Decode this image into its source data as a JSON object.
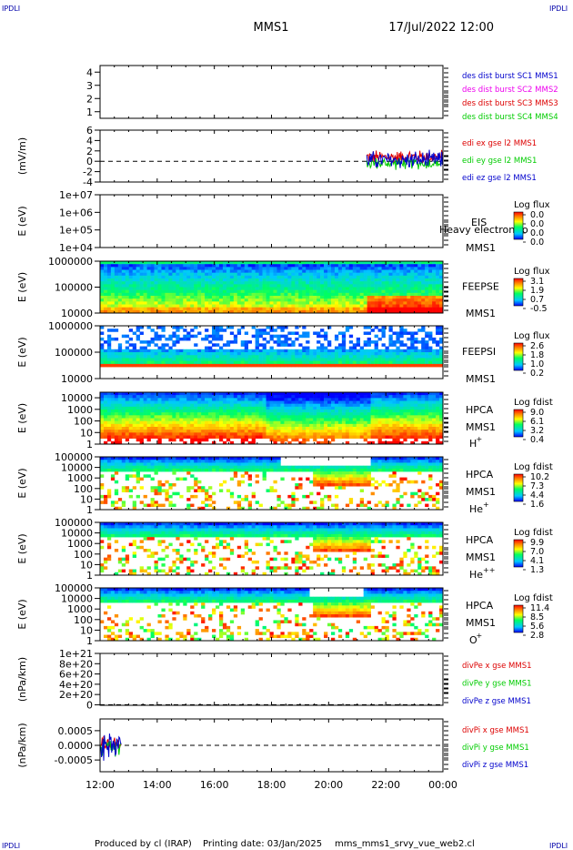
{
  "header": {
    "corner_tl": "IPDLI",
    "corner_tr": "IPDLI",
    "corner_bl": "IPDLI",
    "corner_br": "IPDLI",
    "mission": "MMS1",
    "datetime": "17/Jul/2022 12:00"
  },
  "footer": {
    "producer": "Produced by cl (IRAP)",
    "printing": "Printing date: 03/Jan/2025",
    "script": "mms_mms1_srvy_vue_web2.cl"
  },
  "colors": {
    "series_red": "#dd0000",
    "series_green": "#00cc00",
    "series_blue": "#0000cc",
    "series_magenta": "#ee00ee",
    "frame": "#000000"
  },
  "chart_data": [
    {
      "id": "des",
      "type": "line",
      "ylabel": "",
      "ylim": [
        0.5,
        4.5
      ],
      "y_ticks": [
        "4",
        "3",
        "2",
        "1"
      ],
      "y_tick_values": [
        4,
        3,
        2,
        1
      ],
      "x_ticks": [
        "12:00",
        "14:00",
        "16:00",
        "18:00",
        "20:00",
        "22:00",
        "00:00"
      ],
      "legend": [
        {
          "text": "des dist burst SC1 MMS1",
          "color": "#0000cc"
        },
        {
          "text": "des dist burst SC2 MMS2",
          "color": "#ee00ee"
        },
        {
          "text": "des dist burst SC3 MMS3",
          "color": "#dd0000"
        },
        {
          "text": "des dist burst SC4 MMS4",
          "color": "#00cc00"
        }
      ]
    },
    {
      "id": "edi",
      "type": "line",
      "ylabel": "(mV/m)",
      "ylim": [
        -4,
        6
      ],
      "y_ticks": [
        "6",
        "4",
        "2",
        "0",
        "-2",
        "-4"
      ],
      "y_tick_values": [
        6,
        4,
        2,
        0,
        -2,
        -4
      ],
      "zero_line": true,
      "data_x_range": [
        "21:20",
        "00:00"
      ],
      "series": [
        {
          "name": "edi ex gse l2 MMS1",
          "color": "#dd0000",
          "mean": 0.8,
          "spread": 1.2
        },
        {
          "name": "edi ey gse l2 MMS1",
          "color": "#00cc00",
          "mean": -0.4,
          "spread": 1.0
        },
        {
          "name": "edi ez gse l2 MMS1",
          "color": "#0000cc",
          "mean": 0.2,
          "spread": 1.5
        }
      ]
    },
    {
      "id": "eis",
      "type": "heatmap",
      "ylabel": "E (eV)",
      "y_ticks": [
        "1e+07",
        "1e+06",
        "1e+05",
        "1e+04"
      ],
      "y_tick_values": [
        10000000,
        1000000,
        100000,
        10000
      ],
      "ylim": [
        10000,
        10000000
      ],
      "instrument": [
        "EIS"
      ],
      "spacecraft": "MMS1",
      "overflow_text": "Heavy electron to",
      "colorbar": {
        "title": "Log flux",
        "labels": [
          "0.0",
          "0.0",
          "0.0",
          "0.0"
        ]
      },
      "empty": true
    },
    {
      "id": "feeps_e",
      "type": "heatmap",
      "ylabel": "E (eV)",
      "y_ticks": [
        "1000000",
        "100000",
        "10000"
      ],
      "y_tick_values": [
        1000000,
        100000,
        10000
      ],
      "ylim": [
        10000,
        1000000
      ],
      "instrument": [
        "FEEPSE"
      ],
      "spacecraft": "MMS1",
      "colorbar": {
        "title": "Log flux",
        "labels": [
          "3.1",
          "1.9",
          "0.7",
          "-0.5"
        ]
      }
    },
    {
      "id": "feeps_i",
      "type": "heatmap",
      "ylabel": "E (eV)",
      "y_ticks": [
        "1000000",
        "100000",
        "10000"
      ],
      "y_tick_values": [
        1000000,
        100000,
        10000
      ],
      "ylim": [
        10000,
        1000000
      ],
      "instrument": [
        "FEEPSI"
      ],
      "spacecraft": "MMS1",
      "colorbar": {
        "title": "Log flux",
        "labels": [
          "2.6",
          "1.8",
          "1.0",
          "0.2"
        ]
      }
    },
    {
      "id": "hpca_h",
      "type": "heatmap",
      "ylabel": "E (eV)",
      "y_ticks": [
        "10000",
        "1000",
        "100",
        "10",
        "1"
      ],
      "y_tick_values": [
        10000,
        1000,
        100,
        10,
        1
      ],
      "ylim": [
        1,
        30000
      ],
      "instrument": [
        "HPCA",
        "MMS1"
      ],
      "species": "H",
      "species_sup": "+",
      "colorbar": {
        "title": "Log fdist",
        "labels": [
          "9.0",
          "6.1",
          "3.2",
          "0.4"
        ]
      }
    },
    {
      "id": "hpca_he",
      "type": "heatmap",
      "ylabel": "E (eV)",
      "y_ticks": [
        "100000",
        "10000",
        "1000",
        "100",
        "10",
        "1"
      ],
      "y_tick_values": [
        100000,
        10000,
        1000,
        100,
        10,
        1
      ],
      "ylim": [
        1,
        100000
      ],
      "instrument": [
        "HPCA",
        "MMS1"
      ],
      "species": "He",
      "species_sup": "+",
      "colorbar": {
        "title": "Log fdist",
        "labels": [
          "10.2",
          "7.3",
          "4.4",
          "1.6"
        ]
      }
    },
    {
      "id": "hpca_he2",
      "type": "heatmap",
      "ylabel": "E (eV)",
      "y_ticks": [
        "100000",
        "10000",
        "1000",
        "100",
        "10",
        "1"
      ],
      "y_tick_values": [
        100000,
        10000,
        1000,
        100,
        10,
        1
      ],
      "ylim": [
        1,
        100000
      ],
      "instrument": [
        "HPCA",
        "MMS1"
      ],
      "species": "He",
      "species_sup": "++",
      "colorbar": {
        "title": "Log fdist",
        "labels": [
          "9.9",
          "7.0",
          "4.1",
          "1.3"
        ]
      }
    },
    {
      "id": "hpca_o",
      "type": "heatmap",
      "ylabel": "E (eV)",
      "y_ticks": [
        "100000",
        "10000",
        "1000",
        "100",
        "10",
        "1"
      ],
      "y_tick_values": [
        100000,
        10000,
        1000,
        100,
        10,
        1
      ],
      "ylim": [
        1,
        100000
      ],
      "instrument": [
        "HPCA",
        "MMS1"
      ],
      "species": "O",
      "species_sup": "+",
      "colorbar": {
        "title": "Log fdist",
        "labels": [
          "11.4",
          "8.5",
          "5.6",
          "2.8"
        ]
      }
    },
    {
      "id": "divpe",
      "type": "line",
      "ylabel": "(nPa/km)",
      "ylim": [
        -1e+19,
        1e+21
      ],
      "y_ticks": [
        "1e+21",
        "8e+20",
        "6e+20",
        "4e+20",
        "2e+20",
        "0"
      ],
      "y_tick_values": [
        1e+21,
        8e+20,
        6e+20,
        4e+20,
        2e+20,
        0
      ],
      "zero_line": true,
      "legend": [
        {
          "text": "divPe x gse MMS1",
          "color": "#dd0000"
        },
        {
          "text": "divPe y gse MMS1",
          "color": "#00cc00"
        },
        {
          "text": "divPe z gse MMS1",
          "color": "#0000cc"
        }
      ]
    },
    {
      "id": "divpi",
      "type": "line",
      "ylabel": "(nPa/km)",
      "ylim": [
        -0.0009,
        0.0009
      ],
      "y_ticks": [
        "0.0005",
        "0.0000",
        "-0.0005"
      ],
      "y_tick_values": [
        0.0005,
        0,
        -0.0005
      ],
      "zero_line": true,
      "data_x_range": [
        "12:00",
        "12:45"
      ],
      "series": [
        {
          "name": "divPi x gse MMS1",
          "color": "#dd0000",
          "spread": 0.00025
        },
        {
          "name": "divPi y gse MMS1",
          "color": "#00cc00",
          "spread": 0.00035
        },
        {
          "name": "divPi z gse MMS1",
          "color": "#0000cc",
          "spread": 0.0005
        }
      ]
    }
  ]
}
